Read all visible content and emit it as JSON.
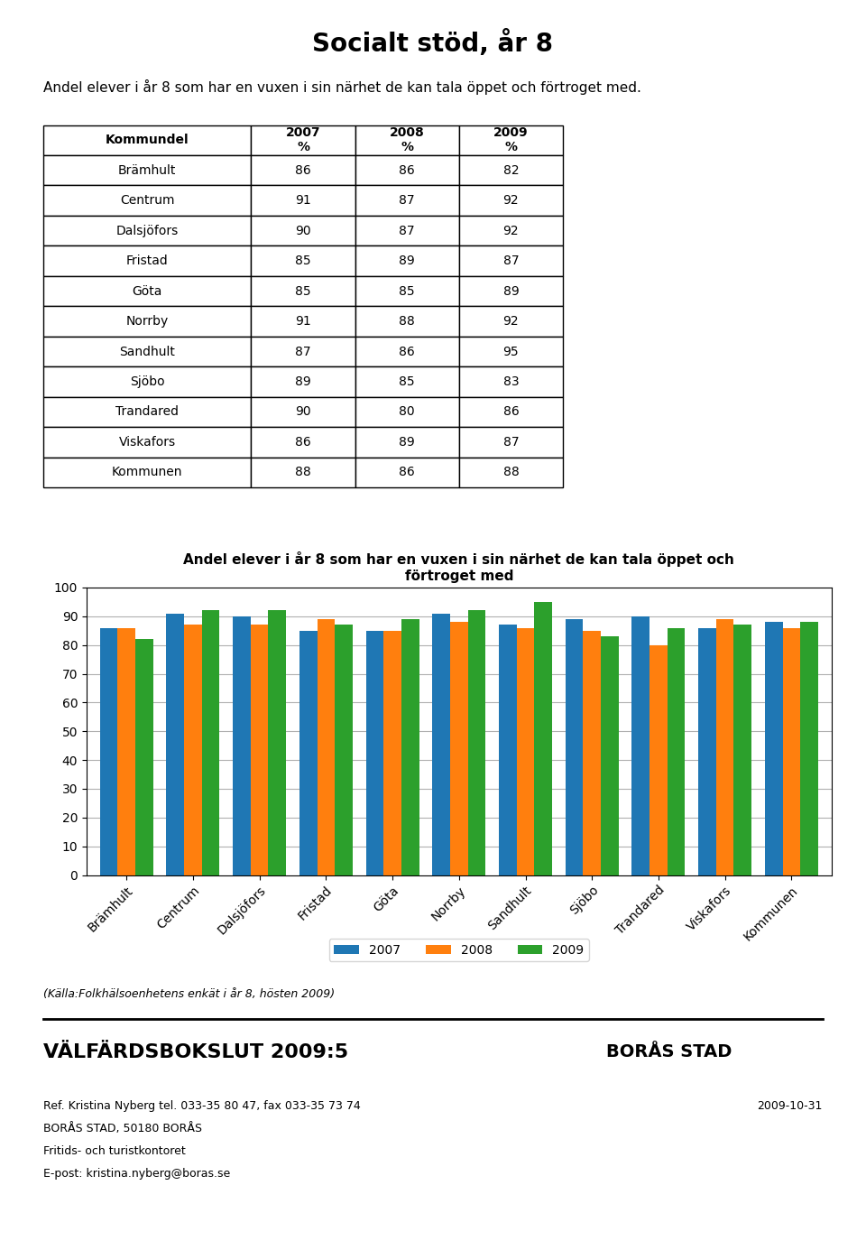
{
  "title": "Socialt stöd, år 8",
  "subtitle": "Andel elever i år 8 som har en vuxen i sin närhet de kan tala öppet och förtroget med.",
  "annotations": [
    "(Källa:Folkhälsoenhetens enkät i år 8, hösten 2009)",
    "VÄLFÄRDSBOKSLUT 2009:5",
    "BORÅS STAD",
    "Ref. Kristina Nyberg tel. 033-35 80 47, fax 033-35 73 74",
    "BORÅS STAD, 50180 BORÅS",
    "Fritids- och turistkontoret",
    "E-post: kristina.nyberg@boras.se",
    "2009-10-31"
  ],
  "chart_data": [
    {
      "type": "table",
      "row_header": "Kommundel",
      "categories": [
        "Brämhult",
        "Centrum",
        "Dalsjöfors",
        "Fristad",
        "Göta",
        "Norrby",
        "Sandhult",
        "Sjöbo",
        "Trandared",
        "Viskafors",
        "Kommunen"
      ],
      "series": [
        {
          "name": "2007\n%",
          "values": [
            86,
            91,
            90,
            85,
            85,
            91,
            87,
            89,
            90,
            86,
            88
          ]
        },
        {
          "name": "2008\n%",
          "values": [
            86,
            87,
            87,
            89,
            85,
            88,
            86,
            85,
            80,
            89,
            86
          ]
        },
        {
          "name": "2009\n%",
          "values": [
            82,
            92,
            92,
            87,
            89,
            92,
            95,
            83,
            86,
            87,
            88
          ]
        }
      ]
    },
    {
      "type": "bar",
      "title": "Andel elever i år 8 som har en vuxen i sin närhet de kan tala öppet och\nförtroget med",
      "categories": [
        "Brämhult",
        "Centrum",
        "Dalsjöfors",
        "Fristad",
        "Göta",
        "Norrby",
        "Sandhult",
        "Sjöbo",
        "Trandared",
        "Viskafors",
        "Kommunen"
      ],
      "series": [
        {
          "name": "2007",
          "values": [
            86,
            91,
            90,
            85,
            85,
            91,
            87,
            89,
            90,
            86,
            88
          ]
        },
        {
          "name": "2008",
          "values": [
            86,
            87,
            87,
            89,
            85,
            88,
            86,
            85,
            80,
            89,
            86
          ]
        },
        {
          "name": "2009",
          "values": [
            82,
            92,
            92,
            87,
            89,
            92,
            95,
            83,
            86,
            87,
            88
          ]
        }
      ],
      "ylim": [
        0,
        100
      ],
      "yticks": [
        0,
        10,
        20,
        30,
        40,
        50,
        60,
        70,
        80,
        90,
        100
      ],
      "grid": true,
      "legend": "upper center"
    }
  ]
}
